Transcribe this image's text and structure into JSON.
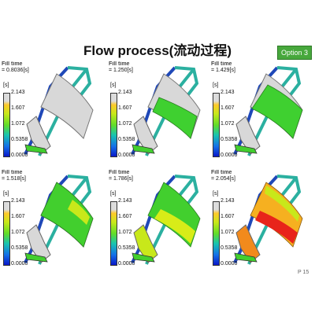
{
  "header": {
    "title": "Flow process(流动过程)",
    "option_label": "Option 3"
  },
  "legend": {
    "label": "Fill time",
    "unit": "[s]",
    "ticks": [
      "2.143",
      "1.607",
      "1.072",
      "0.5358",
      "0.0000"
    ]
  },
  "panels": [
    {
      "time": "= 0.8036[s]",
      "fill_fraction": 0.12
    },
    {
      "time": "= 1.250[s]",
      "fill_fraction": 0.35
    },
    {
      "time": "= 1.429[s]",
      "fill_fraction": 0.5
    },
    {
      "time": "= 1.518[s]",
      "fill_fraction": 0.62
    },
    {
      "time": "= 1.786[s]",
      "fill_fraction": 0.82
    },
    {
      "time": "= 2.054[s]",
      "fill_fraction": 0.97
    }
  ],
  "footer": {
    "page": "P 15"
  }
}
